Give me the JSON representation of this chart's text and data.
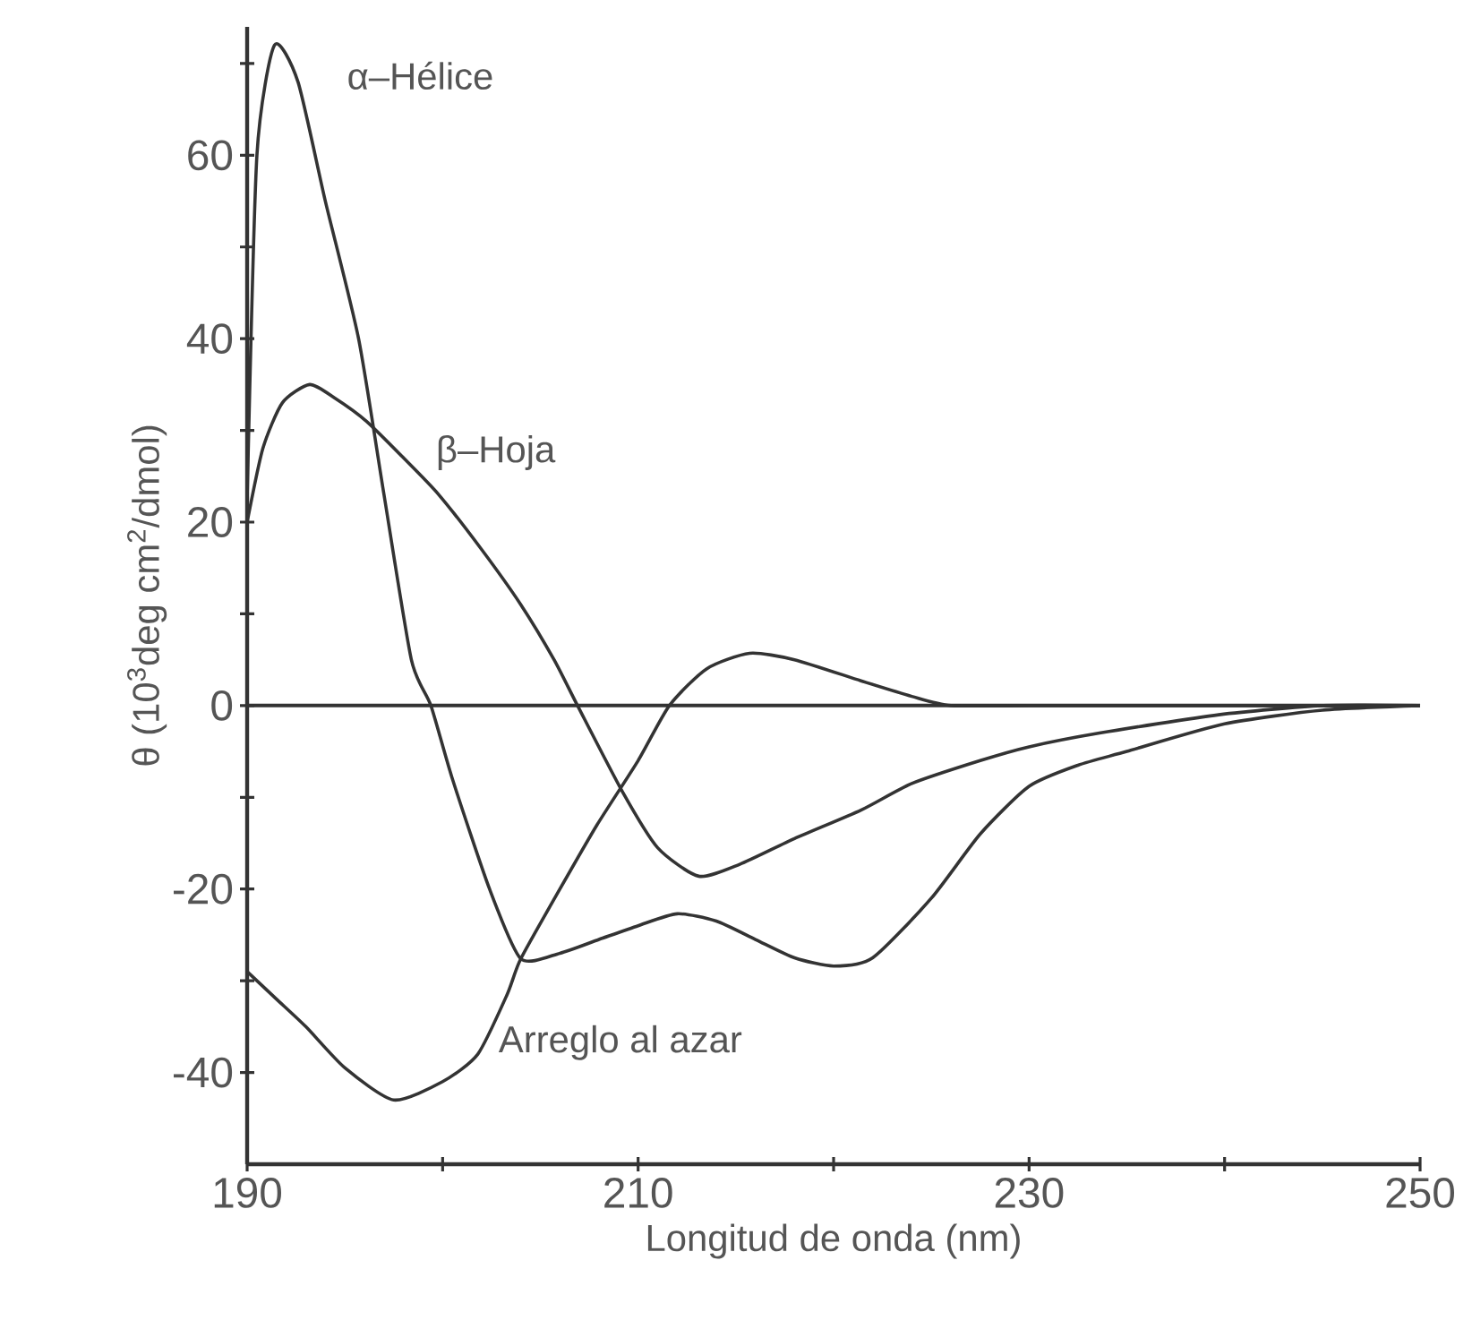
{
  "chart_data": {
    "type": "line",
    "xlabel": "Longitud de onda (nm)",
    "ylabel": "θ (10$^{3}$deg cm$^{2}$/dmol)",
    "xlim": [
      190,
      250
    ],
    "ylim": [
      -50,
      74
    ],
    "xticks": [
      190,
      {
        "value": 200,
        "label": null
      },
      210,
      {
        "value": 220,
        "label": null
      },
      230,
      {
        "value": 240,
        "label": null
      },
      250
    ],
    "yticks": [
      -40,
      {
        "value": -30,
        "label": null
      },
      -20,
      {
        "value": -10,
        "label": null
      },
      0,
      {
        "value": 10,
        "label": null
      },
      20,
      {
        "value": 30,
        "label": null
      },
      40,
      {
        "value": 50,
        "label": null
      },
      60,
      {
        "value": 70,
        "label": null
      }
    ],
    "grid": false,
    "line_style": "solid",
    "ref_lines": [
      {
        "axis": "y",
        "value": 0,
        "color": "#333333"
      }
    ],
    "series": [
      {
        "name": "α–Hélice",
        "color": "#333333",
        "x": [
          190,
          190.5,
          191.4,
          192.6,
          194,
          195.7,
          197,
          198.4,
          199.4,
          200.5,
          202.4,
          204,
          206,
          208,
          210,
          212,
          214,
          216,
          218,
          220,
          222,
          225,
          227.5,
          230,
          232.5,
          235,
          240,
          245,
          250
        ],
        "values": [
          22.5,
          60,
          72,
          68,
          55,
          40,
          23,
          5,
          0,
          -8,
          -20,
          -27.6,
          -27,
          -25.5,
          -24,
          -22.7,
          -23.5,
          -25.5,
          -27.5,
          -28.4,
          -27.5,
          -21,
          -14,
          -8.8,
          -6.5,
          -5,
          -2,
          -0.5,
          0
        ]
      },
      {
        "name": "β–Hoja",
        "color": "#333333",
        "x": [
          190,
          190.8,
          191.8,
          193.2,
          194.5,
          196.1,
          198,
          199.8,
          202,
          204,
          205.7,
          206.9,
          209.2,
          211,
          213.1,
          215.2,
          218,
          221.4,
          224,
          227.5,
          230,
          233.6,
          239.7,
          245,
          250
        ],
        "values": [
          20,
          28,
          33,
          35,
          33.5,
          31,
          27,
          23,
          17,
          11,
          5,
          0,
          -9.4,
          -15.5,
          -18.6,
          -17.3,
          -14.5,
          -11.4,
          -8.5,
          -6,
          -4.5,
          -3,
          -1,
          0,
          0
        ]
      },
      {
        "name": "Arreglo al azar",
        "color": "#333333",
        "x": [
          190,
          191.5,
          193,
          195,
          197.5,
          200,
          201.8,
          203.3,
          204,
          206,
          207.9,
          210,
          211.6,
          213.5,
          215.7,
          218,
          221.4,
          224,
          226,
          230,
          240,
          250
        ],
        "values": [
          -29,
          -32,
          -35,
          -39.5,
          -43,
          -41,
          -38,
          -31.5,
          -27.6,
          -20,
          -13,
          -6,
          0,
          4,
          5.7,
          5,
          2.7,
          1,
          0,
          0,
          0,
          0
        ]
      }
    ]
  }
}
